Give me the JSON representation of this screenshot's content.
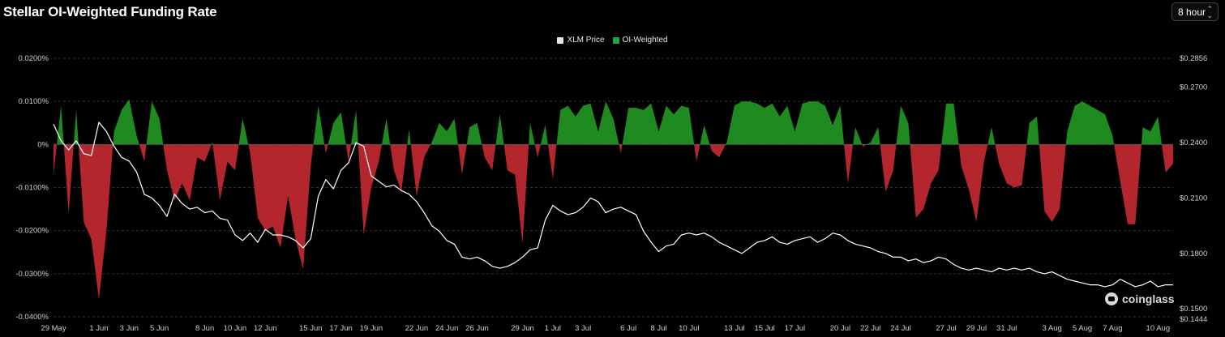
{
  "header": {
    "title": "Stellar OI-Weighted Funding Rate",
    "interval": "8 hour"
  },
  "brand": {
    "watermark": "coinglass"
  },
  "colors": {
    "positive": "#1f8a1f",
    "negative": "#b3262e",
    "price_line": "#ffffff",
    "grid": "#333333",
    "background": "#000000"
  },
  "chart_data": {
    "type": "area",
    "legend_placement": "top-center",
    "grid": true,
    "series": [
      {
        "name": "XLM Price",
        "type": "line",
        "axis": "right"
      },
      {
        "name": "OI-Weighted",
        "type": "area",
        "axis": "left"
      }
    ],
    "y_left": {
      "ticks": [
        "0.0200%",
        "0.0100%",
        "0%",
        "-0.0100%",
        "-0.0200%",
        "-0.0300%",
        "-0.0400%"
      ],
      "range": [
        -0.04,
        0.02
      ],
      "unit": "%"
    },
    "y_right": {
      "ticks": [
        "$0.2856",
        "$0.2700",
        "$0.2400",
        "$0.2100",
        "$0.1800",
        "$0.1500",
        "$0.1444"
      ],
      "range": [
        0.1444,
        0.2856
      ]
    },
    "x_ticks": [
      "29 May",
      "1 Jun",
      "3 Jun",
      "5 Jun",
      "8 Jun",
      "10 Jun",
      "12 Jun",
      "15 Jun",
      "17 Jun",
      "19 Jun",
      "22 Jun",
      "24 Jun",
      "26 Jun",
      "29 Jun",
      "1 Jul",
      "3 Jul",
      "6 Jul",
      "8 Jul",
      "10 Jul",
      "13 Jul",
      "15 Jul",
      "17 Jul",
      "20 Jul",
      "22 Jul",
      "24 Jul",
      "27 Jul",
      "29 Jul",
      "31 Jul",
      "3 Aug",
      "5 Aug",
      "7 Aug",
      "10 Aug"
    ],
    "x_start": "29 May",
    "x_end": "11 Aug",
    "funding_rate": [
      [
        "29 May",
        -0.007
      ],
      [
        "29.5 May",
        0.009
      ],
      [
        "30 May",
        -0.016
      ],
      [
        "30.5 May",
        0.008
      ],
      [
        "31 May",
        -0.018
      ],
      [
        "31.5 May",
        -0.022
      ],
      [
        "1 Jun",
        -0.036
      ],
      [
        "1.5 Jun",
        -0.02
      ],
      [
        "2 Jun",
        0.003
      ],
      [
        "2.5 Jun",
        0.008
      ],
      [
        "3 Jun",
        0.0105
      ],
      [
        "3.5 Jun",
        0.002
      ],
      [
        "4 Jun",
        -0.004
      ],
      [
        "4.5 Jun",
        0.01
      ],
      [
        "5 Jun",
        0.006
      ],
      [
        "5.5 Jun",
        -0.006
      ],
      [
        "6 Jun",
        -0.013
      ],
      [
        "6.5 Jun",
        -0.009
      ],
      [
        "7 Jun",
        -0.013
      ],
      [
        "7.5 Jun",
        -0.003
      ],
      [
        "8 Jun",
        -0.004
      ],
      [
        "8.5 Jun",
        0.0005
      ],
      [
        "9 Jun",
        -0.013
      ],
      [
        "9.5 Jun",
        -0.004
      ],
      [
        "10 Jun",
        -0.006
      ],
      [
        "10.5 Jun",
        0.006
      ],
      [
        "11 Jun",
        -0.002
      ],
      [
        "11.5 Jun",
        -0.017
      ],
      [
        "12 Jun",
        -0.02
      ],
      [
        "12.5 Jun",
        -0.019
      ],
      [
        "13 Jun",
        -0.024
      ],
      [
        "13.5 Jun",
        -0.012
      ],
      [
        "14 Jun",
        -0.022
      ],
      [
        "14.5 Jun",
        -0.029
      ],
      [
        "15 Jun",
        -0.005
      ],
      [
        "15.5 Jun",
        0.009
      ],
      [
        "16 Jun",
        -0.002
      ],
      [
        "16.5 Jun",
        0.005
      ],
      [
        "17 Jun",
        0.0075
      ],
      [
        "17.5 Jun",
        -0.004
      ],
      [
        "18 Jun",
        0.008
      ],
      [
        "18.5 Jun",
        -0.021
      ],
      [
        "19 Jun",
        -0.01
      ],
      [
        "19.5 Jun",
        -0.004
      ],
      [
        "20 Jun",
        0.006
      ],
      [
        "20.5 Jun",
        -0.006
      ],
      [
        "21 Jun",
        -0.011
      ],
      [
        "21.5 Jun",
        0.0035
      ],
      [
        "22 Jun",
        -0.012
      ],
      [
        "22.5 Jun",
        -0.003
      ],
      [
        "23 Jun",
        0.0005
      ],
      [
        "23.5 Jun",
        0.005
      ],
      [
        "24 Jun",
        0.003
      ],
      [
        "24.5 Jun",
        0.006
      ],
      [
        "25 Jun",
        -0.007
      ],
      [
        "25.5 Jun",
        0.004
      ],
      [
        "26 Jun",
        0.005
      ],
      [
        "26.5 Jun",
        -0.003
      ],
      [
        "27 Jun",
        -0.006
      ],
      [
        "27.5 Jun",
        0.007
      ],
      [
        "28 Jun",
        -0.006
      ],
      [
        "28.5 Jun",
        -0.007
      ],
      [
        "29 Jun",
        -0.023
      ],
      [
        "29.5 Jun",
        0.005
      ],
      [
        "30 Jun",
        -0.003
      ],
      [
        "30.5 Jun",
        0.0045
      ],
      [
        "1 Jul",
        -0.008
      ],
      [
        "1.5 Jul",
        0.008
      ],
      [
        "2 Jul",
        0.009
      ],
      [
        "2.5 Jul",
        0.0065
      ],
      [
        "3 Jul",
        0.009
      ],
      [
        "3.5 Jul",
        0.0095
      ],
      [
        "4 Jul",
        0.003
      ],
      [
        "4.5 Jul",
        0.01
      ],
      [
        "5 Jul",
        0.006
      ],
      [
        "5.5 Jul",
        -0.002
      ],
      [
        "6 Jul",
        0.0085
      ],
      [
        "6.5 Jul",
        0.0085
      ],
      [
        "7 Jul",
        0.008
      ],
      [
        "7.5 Jul",
        0.0095
      ],
      [
        "8 Jul",
        0.003
      ],
      [
        "8.5 Jul",
        0.009
      ],
      [
        "9 Jul",
        0.007
      ],
      [
        "9.5 Jul",
        0.009
      ],
      [
        "10 Jul",
        0.0085
      ],
      [
        "10.5 Jul",
        -0.004
      ],
      [
        "11 Jul",
        0.0045
      ],
      [
        "11.5 Jul",
        -0.0015
      ],
      [
        "12 Jul",
        -0.003
      ],
      [
        "12.5 Jul",
        0.0005
      ],
      [
        "13 Jul",
        0.009
      ],
      [
        "13.5 Jul",
        0.01
      ],
      [
        "14 Jul",
        0.01
      ],
      [
        "14.5 Jul",
        0.0095
      ],
      [
        "15 Jul",
        0.0085
      ],
      [
        "15.5 Jul",
        0.0095
      ],
      [
        "16 Jul",
        0.0065
      ],
      [
        "16.5 Jul",
        0.009
      ],
      [
        "17 Jul",
        0.003
      ],
      [
        "17.5 Jul",
        0.0095
      ],
      [
        "18 Jul",
        0.01
      ],
      [
        "18.5 Jul",
        0.01
      ],
      [
        "19 Jul",
        0.009
      ],
      [
        "19.5 Jul",
        0.0045
      ],
      [
        "20 Jul",
        0.009
      ],
      [
        "20.5 Jul",
        -0.009
      ],
      [
        "21 Jul",
        0.004
      ],
      [
        "21.5 Jul",
        -0.0005
      ],
      [
        "22 Jul",
        0.0005
      ],
      [
        "22.5 Jul",
        0.004
      ],
      [
        "23 Jul",
        -0.011
      ],
      [
        "23.5 Jul",
        -0.006
      ],
      [
        "24 Jul",
        0.009
      ],
      [
        "24.5 Jul",
        0.005
      ],
      [
        "25 Jul",
        -0.017
      ],
      [
        "25.5 Jul",
        -0.015
      ],
      [
        "26 Jul",
        -0.009
      ],
      [
        "26.5 Jul",
        -0.006
      ],
      [
        "27 Jul",
        0.0095
      ],
      [
        "27.5 Jul",
        0.0095
      ],
      [
        "28 Jul",
        -0.005
      ],
      [
        "28.5 Jul",
        -0.0105
      ],
      [
        "29 Jul",
        -0.018
      ],
      [
        "29.5 Jul",
        -0.004
      ],
      [
        "30 Jul",
        0.004
      ],
      [
        "30.5 Jul",
        -0.0045
      ],
      [
        "31 Jul",
        -0.009
      ],
      [
        "31.5 Jul",
        -0.01
      ],
      [
        "1 Aug",
        -0.0095
      ],
      [
        "1.5 Aug",
        0.005
      ],
      [
        "2 Aug",
        0.0065
      ],
      [
        "2.5 Aug",
        -0.0155
      ],
      [
        "3 Aug",
        -0.018
      ],
      [
        "3.5 Aug",
        -0.015
      ],
      [
        "4 Aug",
        0.003
      ],
      [
        "4.5 Aug",
        0.009
      ],
      [
        "5 Aug",
        0.01
      ],
      [
        "5.5 Aug",
        0.009
      ],
      [
        "6 Aug",
        0.008
      ],
      [
        "6.5 Aug",
        0.007
      ],
      [
        "7 Aug",
        0.002
      ],
      [
        "7.5 Aug",
        -0.0085
      ],
      [
        "8 Aug",
        -0.0185
      ],
      [
        "8.5 Aug",
        -0.0185
      ],
      [
        "9 Aug",
        0.004
      ],
      [
        "9.5 Aug",
        0.003
      ],
      [
        "10 Aug",
        0.0065
      ],
      [
        "10.5 Aug",
        -0.0065
      ],
      [
        "11 Aug",
        -0.0045
      ]
    ],
    "xlm_price": [
      [
        "29 May",
        0.25
      ],
      [
        "29.5 May",
        0.241
      ],
      [
        "30 May",
        0.236
      ],
      [
        "30.5 May",
        0.241
      ],
      [
        "31 May",
        0.234
      ],
      [
        "31.5 May",
        0.233
      ],
      [
        "1 Jun",
        0.251
      ],
      [
        "1.5 Jun",
        0.246
      ],
      [
        "2 Jun",
        0.238
      ],
      [
        "2.5 Jun",
        0.232
      ],
      [
        "3 Jun",
        0.23
      ],
      [
        "3.5 Jun",
        0.224
      ],
      [
        "4 Jun",
        0.212
      ],
      [
        "4.5 Jun",
        0.21
      ],
      [
        "5 Jun",
        0.206
      ],
      [
        "5.5 Jun",
        0.2
      ],
      [
        "6 Jun",
        0.212
      ],
      [
        "6.5 Jun",
        0.207
      ],
      [
        "7 Jun",
        0.204
      ],
      [
        "7.5 Jun",
        0.205
      ],
      [
        "8 Jun",
        0.202
      ],
      [
        "8.5 Jun",
        0.203
      ],
      [
        "9 Jun",
        0.199
      ],
      [
        "9.5 Jun",
        0.198
      ],
      [
        "10 Jun",
        0.19
      ],
      [
        "10.5 Jun",
        0.187
      ],
      [
        "11 Jun",
        0.191
      ],
      [
        "11.5 Jun",
        0.186
      ],
      [
        "12 Jun",
        0.193
      ],
      [
        "12.5 Jun",
        0.19
      ],
      [
        "13 Jun",
        0.19
      ],
      [
        "13.5 Jun",
        0.189
      ],
      [
        "14 Jun",
        0.187
      ],
      [
        "14.5 Jun",
        0.183
      ],
      [
        "15 Jun",
        0.188
      ],
      [
        "15.5 Jun",
        0.211
      ],
      [
        "16 Jun",
        0.22
      ],
      [
        "16.5 Jun",
        0.215
      ],
      [
        "17 Jun",
        0.225
      ],
      [
        "17.5 Jun",
        0.229
      ],
      [
        "18 Jun",
        0.24
      ],
      [
        "18.5 Jun",
        0.238
      ],
      [
        "19 Jun",
        0.222
      ],
      [
        "19.5 Jun",
        0.219
      ],
      [
        "20 Jun",
        0.216
      ],
      [
        "20.5 Jun",
        0.217
      ],
      [
        "21 Jun",
        0.214
      ],
      [
        "21.5 Jun",
        0.212
      ],
      [
        "22 Jun",
        0.208
      ],
      [
        "22.5 Jun",
        0.202
      ],
      [
        "23 Jun",
        0.195
      ],
      [
        "23.5 Jun",
        0.192
      ],
      [
        "24 Jun",
        0.187
      ],
      [
        "24.5 Jun",
        0.185
      ],
      [
        "25 Jun",
        0.178
      ],
      [
        "25.5 Jun",
        0.177
      ],
      [
        "26 Jun",
        0.178
      ],
      [
        "26.5 Jun",
        0.176
      ],
      [
        "27 Jun",
        0.173
      ],
      [
        "27.5 Jun",
        0.172
      ],
      [
        "28 Jun",
        0.173
      ],
      [
        "28.5 Jun",
        0.175
      ],
      [
        "29 Jun",
        0.178
      ],
      [
        "29.5 Jun",
        0.182
      ],
      [
        "30 Jun",
        0.183
      ],
      [
        "30.5 Jun",
        0.198
      ],
      [
        "1 Jul",
        0.206
      ],
      [
        "1.5 Jul",
        0.203
      ],
      [
        "2 Jul",
        0.201
      ],
      [
        "2.5 Jul",
        0.202
      ],
      [
        "3 Jul",
        0.205
      ],
      [
        "3.5 Jul",
        0.21
      ],
      [
        "4 Jul",
        0.208
      ],
      [
        "4.5 Jul",
        0.202
      ],
      [
        "5 Jul",
        0.204
      ],
      [
        "5.5 Jul",
        0.205
      ],
      [
        "6 Jul",
        0.203
      ],
      [
        "6.5 Jul",
        0.201
      ],
      [
        "7 Jul",
        0.192
      ],
      [
        "7.5 Jul",
        0.186
      ],
      [
        "8 Jul",
        0.181
      ],
      [
        "8.5 Jul",
        0.184
      ],
      [
        "9 Jul",
        0.185
      ],
      [
        "9.5 Jul",
        0.19
      ],
      [
        "10 Jul",
        0.191
      ],
      [
        "10.5 Jul",
        0.19
      ],
      [
        "11 Jul",
        0.191
      ],
      [
        "11.5 Jul",
        0.189
      ],
      [
        "12 Jul",
        0.186
      ],
      [
        "12.5 Jul",
        0.184
      ],
      [
        "13 Jul",
        0.182
      ],
      [
        "13.5 Jul",
        0.18
      ],
      [
        "14 Jul",
        0.183
      ],
      [
        "14.5 Jul",
        0.186
      ],
      [
        "15 Jul",
        0.187
      ],
      [
        "15.5 Jul",
        0.189
      ],
      [
        "16 Jul",
        0.186
      ],
      [
        "16.5 Jul",
        0.185
      ],
      [
        "17 Jul",
        0.187
      ],
      [
        "17.5 Jul",
        0.188
      ],
      [
        "18 Jul",
        0.189
      ],
      [
        "18.5 Jul",
        0.186
      ],
      [
        "19 Jul",
        0.188
      ],
      [
        "19.5 Jul",
        0.191
      ],
      [
        "20 Jul",
        0.19
      ],
      [
        "20.5 Jul",
        0.187
      ],
      [
        "21 Jul",
        0.185
      ],
      [
        "21.5 Jul",
        0.184
      ],
      [
        "22 Jul",
        0.183
      ],
      [
        "22.5 Jul",
        0.181
      ],
      [
        "23 Jul",
        0.18
      ],
      [
        "23.5 Jul",
        0.178
      ],
      [
        "24 Jul",
        0.178
      ],
      [
        "24.5 Jul",
        0.176
      ],
      [
        "25 Jul",
        0.177
      ],
      [
        "25.5 Jul",
        0.175
      ],
      [
        "26 Jul",
        0.176
      ],
      [
        "26.5 Jul",
        0.178
      ],
      [
        "27 Jul",
        0.177
      ],
      [
        "27.5 Jul",
        0.174
      ],
      [
        "28 Jul",
        0.172
      ],
      [
        "28.5 Jul",
        0.171
      ],
      [
        "29 Jul",
        0.172
      ],
      [
        "29.5 Jul",
        0.171
      ],
      [
        "30 Jul",
        0.17
      ],
      [
        "30.5 Jul",
        0.172
      ],
      [
        "31 Jul",
        0.171
      ],
      [
        "31.5 Jul",
        0.172
      ],
      [
        "1 Aug",
        0.171
      ],
      [
        "1.5 Aug",
        0.172
      ],
      [
        "2 Aug",
        0.17
      ],
      [
        "2.5 Aug",
        0.169
      ],
      [
        "3 Aug",
        0.17
      ],
      [
        "3.5 Aug",
        0.168
      ],
      [
        "4 Aug",
        0.166
      ],
      [
        "4.5 Aug",
        0.165
      ],
      [
        "5 Aug",
        0.164
      ],
      [
        "5.5 Aug",
        0.163
      ],
      [
        "6 Aug",
        0.163
      ],
      [
        "6.5 Aug",
        0.162
      ],
      [
        "7 Aug",
        0.163
      ],
      [
        "7.5 Aug",
        0.166
      ],
      [
        "8 Aug",
        0.164
      ],
      [
        "8.5 Aug",
        0.162
      ],
      [
        "9 Aug",
        0.163
      ],
      [
        "9.5 Aug",
        0.165
      ],
      [
        "10 Aug",
        0.162
      ],
      [
        "10.5 Aug",
        0.163
      ],
      [
        "11 Aug",
        0.163
      ]
    ]
  }
}
